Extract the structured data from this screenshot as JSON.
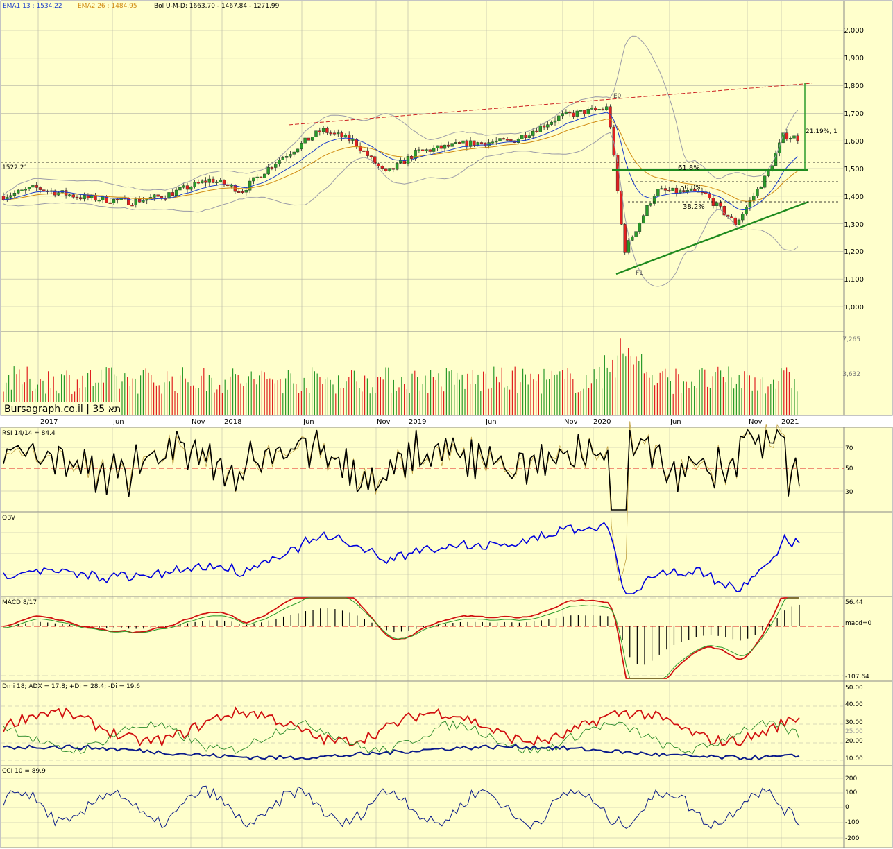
{
  "app": {
    "brand_label": "Bursagraph.co.il | 35 תא"
  },
  "colors": {
    "bg": "#ffffcc",
    "grid": "#b4b4a4",
    "up": "#2a9a2a",
    "down": "#e02020",
    "ema1": "#1a3ccc",
    "ema2": "#d08a10",
    "bollinger": "#9c9ca8",
    "red_line": "#cc2222",
    "green_line": "#1e8a1e",
    "rsi": "#000000",
    "obv": "#0000dd",
    "adx": "#0a1a8a",
    "dip": "#d01010",
    "dim": "#2a8a2a",
    "cci": "#0a1a8a"
  },
  "header": {
    "ema1": "EMA1 13 : 1534.22",
    "ema2": "EMA2 26 : 1484.95",
    "bol": "Bol U-M-D: 1663.70 - 1467.84 - 1271.99"
  },
  "price_panel": {
    "y_ticks": [
      "2,000",
      "1,900",
      "1,800",
      "1,700",
      "1,600",
      "1,500",
      "1,400",
      "1,300",
      "1,200",
      "1,100",
      "1,000"
    ],
    "left_label": "1522.21",
    "fib_labels": [
      "61.8%",
      "50.0%",
      "38.2%"
    ],
    "pct_label": "21.19%, 1",
    "e0_label": "E0",
    "f1_label": "F1"
  },
  "volume_panel": {
    "ticks": [
      "7,265",
      "3,632"
    ]
  },
  "x_axis": {
    "labels": [
      "2017",
      "Jun",
      "Nov",
      "2018",
      "Jun",
      "Nov",
      "2019",
      "Jun",
      "Nov",
      "2020",
      "Jun",
      "Nov",
      "2021"
    ]
  },
  "rsi_panel": {
    "title": "RSI 14/14 = 84.4",
    "ticks": [
      "70",
      "50",
      "30"
    ]
  },
  "obv_panel": {
    "title": "OBV"
  },
  "macd_panel": {
    "title": "MACD 8/17",
    "top": "56.44",
    "zero": "macd=0",
    "bottom": "-107.64"
  },
  "dmi_panel": {
    "title": "Dmi 18; ADX = 17.8; +Di = 28.4; -Di = 19.6",
    "ticks": [
      "50.00",
      "40.00",
      "30.00",
      "25.00",
      "20.00",
      "10.00"
    ]
  },
  "cci_panel": {
    "title": "CCI 10 = 89.9",
    "ticks": [
      "200",
      "100",
      "0",
      "-100",
      "-200"
    ]
  },
  "chart_data": [
    {
      "type": "candlestick",
      "title": "",
      "x_range": [
        "2016-12",
        "2021-02"
      ],
      "ylim": [
        1000,
        2000
      ],
      "series": [
        {
          "name": "EMA1 13",
          "last": 1534.22
        },
        {
          "name": "EMA2 26",
          "last": 1484.95
        },
        {
          "name": "Bol U-M-D",
          "upper": 1663.7,
          "middle": 1467.84,
          "lower": 1271.99
        }
      ],
      "approx_price_path": [
        [
          "2016-12",
          1400
        ],
        [
          "2017-02",
          1430
        ],
        [
          "2017-05",
          1395
        ],
        [
          "2017-08",
          1380
        ],
        [
          "2017-10",
          1400
        ],
        [
          "2018-01",
          1460
        ],
        [
          "2018-03",
          1420
        ],
        [
          "2018-05",
          1520
        ],
        [
          "2018-08",
          1640
        ],
        [
          "2018-10",
          1600
        ],
        [
          "2018-12",
          1480
        ],
        [
          "2019-02",
          1560
        ],
        [
          "2019-05",
          1590
        ],
        [
          "2019-08",
          1600
        ],
        [
          "2019-11",
          1690
        ],
        [
          "2020-02",
          1720
        ],
        [
          "2020-03",
          1200
        ],
        [
          "2020-05",
          1420
        ],
        [
          "2020-08",
          1410
        ],
        [
          "2020-10",
          1300
        ],
        [
          "2020-12",
          1480
        ],
        [
          "2021-01",
          1620
        ],
        [
          "2021-02",
          1610
        ]
      ]
    },
    {
      "type": "bar",
      "title": "",
      "ylabel": "",
      "ylim": [
        0,
        7265
      ]
    },
    {
      "type": "line",
      "title": "RSI 14/14 = 84.4",
      "ylim": [
        20,
        90
      ],
      "last": 84.4
    },
    {
      "type": "line",
      "title": "OBV"
    },
    {
      "type": "line",
      "title": "MACD 8/17",
      "ylim": [
        -107.64,
        56.44
      ]
    },
    {
      "type": "line",
      "title": "Dmi 18",
      "series": [
        {
          "name": "ADX",
          "last": 17.8
        },
        {
          "name": "+Di",
          "last": 28.4
        },
        {
          "name": "-Di",
          "last": 19.6
        }
      ]
    },
    {
      "type": "line",
      "title": "CCI 10 = 89.9",
      "last": 89.9
    }
  ]
}
